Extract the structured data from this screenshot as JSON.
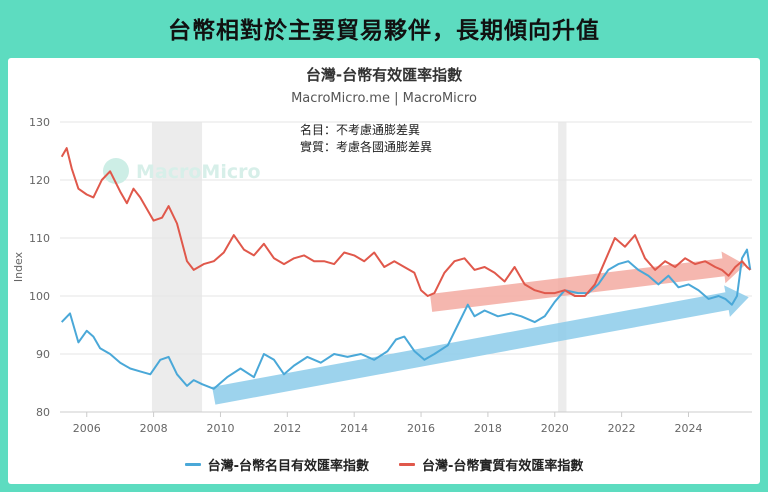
{
  "banner": {
    "title": "台幣相對於主要貿易夥伴，長期傾向升值"
  },
  "chart_data": {
    "type": "line",
    "title": "台灣-台幣有效匯率指數",
    "subtitle": "MacroMicro.me | MacroMicro",
    "watermark": "MacroMicro",
    "ylabel": "Index",
    "xlabel": "",
    "ylim": [
      80,
      130
    ],
    "xlim": [
      2005.2,
      2025.9
    ],
    "yticks": [
      80,
      90,
      100,
      110,
      120,
      130
    ],
    "xticks": [
      2006,
      2008,
      2010,
      2012,
      2014,
      2016,
      2018,
      2020,
      2022,
      2024
    ],
    "grid": "horizontal",
    "legend_position": "bottom",
    "annotations": [
      "名目：不考慮通膨差異",
      "實質：考慮各國通膨差異"
    ],
    "recession_bands": [
      [
        2007.95,
        2009.45
      ],
      [
        2020.1,
        2020.35
      ]
    ],
    "colors": {
      "nominal": "#4aa8d8",
      "real": "#e0584b",
      "nominal_arrow": "#8ccbea",
      "real_arrow": "#f3aaa1",
      "band": "#ececec"
    },
    "trend_arrows": [
      {
        "series": "nominal",
        "from": [
          2009.8,
          82.8
        ],
        "to": [
          2025.8,
          99.8
        ]
      },
      {
        "series": "real",
        "from": [
          2016.3,
          98.8
        ],
        "to": [
          2025.7,
          105.4
        ]
      }
    ],
    "series": [
      {
        "name": "台灣-台幣名目有效匯率指數",
        "key": "nominal",
        "x": [
          2005.25,
          2005.5,
          2005.75,
          2006.0,
          2006.2,
          2006.4,
          2006.7,
          2007.0,
          2007.3,
          2007.6,
          2007.9,
          2008.2,
          2008.45,
          2008.7,
          2009.0,
          2009.2,
          2009.45,
          2009.8,
          2010.2,
          2010.6,
          2011.0,
          2011.3,
          2011.6,
          2011.9,
          2012.2,
          2012.6,
          2013.0,
          2013.4,
          2013.8,
          2014.2,
          2014.6,
          2015.0,
          2015.25,
          2015.5,
          2015.8,
          2016.1,
          2016.4,
          2016.8,
          2017.1,
          2017.4,
          2017.6,
          2017.9,
          2018.3,
          2018.7,
          2019.0,
          2019.4,
          2019.7,
          2020.0,
          2020.3,
          2020.7,
          2021.0,
          2021.3,
          2021.6,
          2021.9,
          2022.2,
          2022.5,
          2022.8,
          2023.1,
          2023.4,
          2023.7,
          2024.0,
          2024.3,
          2024.6,
          2024.9,
          2025.1,
          2025.3,
          2025.45,
          2025.6,
          2025.75,
          2025.85
        ],
        "values": [
          95.5,
          97.0,
          92.0,
          94.0,
          93.0,
          91.0,
          90.0,
          88.5,
          87.5,
          87.0,
          86.5,
          89.0,
          89.5,
          86.5,
          84.5,
          85.5,
          84.8,
          84.0,
          86.0,
          87.5,
          86.0,
          90.0,
          89.0,
          86.5,
          88.0,
          89.5,
          88.5,
          90.0,
          89.5,
          90.0,
          89.0,
          90.5,
          92.5,
          93.0,
          90.5,
          89.0,
          90.0,
          91.5,
          95.0,
          98.5,
          96.5,
          97.5,
          96.5,
          97.0,
          96.5,
          95.5,
          96.5,
          99.0,
          101.0,
          100.5,
          100.5,
          102.0,
          104.5,
          105.5,
          106.0,
          104.5,
          103.5,
          102.0,
          103.5,
          101.5,
          102.0,
          101.0,
          99.5,
          100.0,
          99.5,
          98.5,
          100.0,
          106.5,
          108.0,
          104.5
        ]
      },
      {
        "name": "台灣-台幣實質有效匯率指數",
        "key": "real",
        "x": [
          2005.25,
          2005.4,
          2005.55,
          2005.75,
          2006.0,
          2006.2,
          2006.45,
          2006.7,
          2007.0,
          2007.2,
          2007.4,
          2007.6,
          2007.8,
          2008.0,
          2008.25,
          2008.45,
          2008.7,
          2009.0,
          2009.2,
          2009.5,
          2009.8,
          2010.1,
          2010.4,
          2010.7,
          2011.0,
          2011.3,
          2011.6,
          2011.9,
          2012.2,
          2012.5,
          2012.8,
          2013.1,
          2013.4,
          2013.7,
          2014.0,
          2014.3,
          2014.6,
          2014.9,
          2015.2,
          2015.5,
          2015.8,
          2016.0,
          2016.2,
          2016.4,
          2016.7,
          2017.0,
          2017.3,
          2017.6,
          2017.9,
          2018.2,
          2018.5,
          2018.8,
          2019.1,
          2019.4,
          2019.7,
          2020.0,
          2020.3,
          2020.6,
          2020.9,
          2021.2,
          2021.5,
          2021.8,
          2022.1,
          2022.4,
          2022.7,
          2023.0,
          2023.3,
          2023.6,
          2023.9,
          2024.2,
          2024.5,
          2024.8,
          2025.0,
          2025.2,
          2025.4,
          2025.6,
          2025.75,
          2025.85
        ],
        "values": [
          124.0,
          125.5,
          122.0,
          118.5,
          117.5,
          117.0,
          120.0,
          121.5,
          118.0,
          116.0,
          118.5,
          117.0,
          115.0,
          113.0,
          113.5,
          115.5,
          112.5,
          106.0,
          104.5,
          105.5,
          106.0,
          107.5,
          110.5,
          108.0,
          107.0,
          109.0,
          106.5,
          105.5,
          106.5,
          107.0,
          106.0,
          106.0,
          105.5,
          107.5,
          107.0,
          106.0,
          107.5,
          105.0,
          106.0,
          105.0,
          104.0,
          101.0,
          100.0,
          100.5,
          104.0,
          106.0,
          106.5,
          104.5,
          105.0,
          104.0,
          102.5,
          105.0,
          102.0,
          101.0,
          100.5,
          100.5,
          101.0,
          100.0,
          100.0,
          102.0,
          106.0,
          110.0,
          108.5,
          110.5,
          106.5,
          104.5,
          106.0,
          105.0,
          106.5,
          105.5,
          106.0,
          105.0,
          104.5,
          103.5,
          105.0,
          106.0,
          105.0,
          104.5
        ]
      }
    ]
  }
}
